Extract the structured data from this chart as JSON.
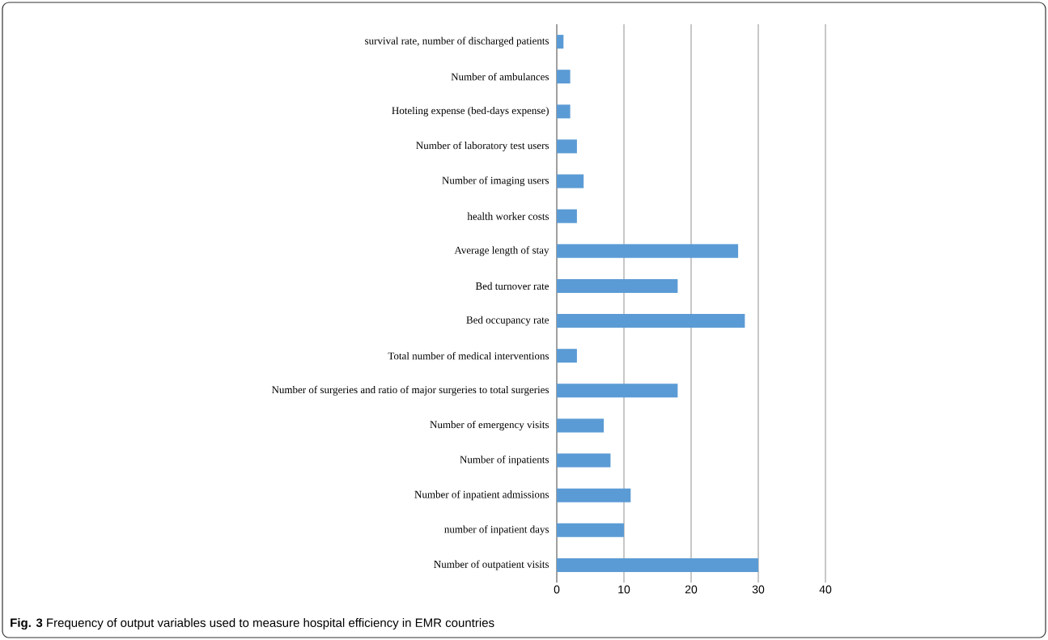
{
  "chart_data": {
    "type": "bar",
    "orientation": "horizontal",
    "categories": [
      "survival rate, number of discharged patients",
      "Number of ambulances",
      "Hoteling expense (bed-days expense)",
      "Number of laboratory test users",
      "Number of imaging users",
      "health worker costs",
      "Average length of stay",
      "Bed turnover rate",
      "Bed occupancy rate",
      "Total number of medical interventions",
      "Number of surgeries and ratio of major surgeries to total surgeries",
      "Number of emergency visits",
      "Number of inpatients",
      "Number of inpatient admissions",
      "number of inpatient days",
      "Number of outpatient visits"
    ],
    "values": [
      1,
      2,
      2,
      3,
      4,
      3,
      27,
      18,
      28,
      3,
      18,
      7,
      8,
      11,
      10,
      30
    ],
    "color": "#5b9bd5",
    "xlim": [
      0,
      40
    ],
    "xticks": [
      0,
      10,
      20,
      30,
      40
    ],
    "grid": "x",
    "annotations": [
      "**Fig. 3** Frequency of output variables used to measure hospital efficiency in EMR countries"
    ]
  }
}
